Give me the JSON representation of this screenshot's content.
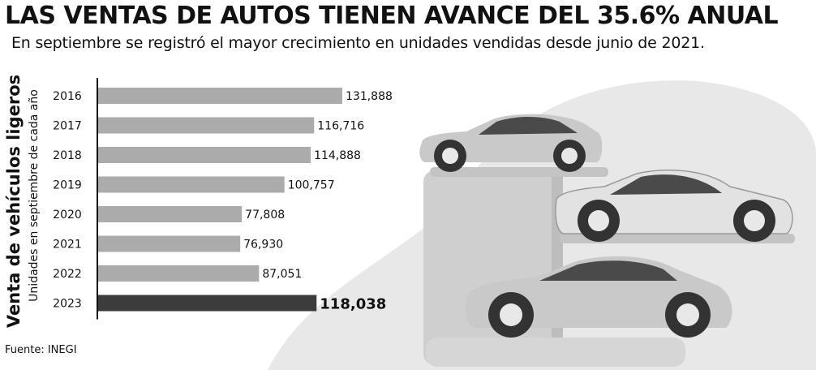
{
  "header": {
    "title": "LAS VENTAS DE AUTOS TIENEN AVANCE DEL 35.6% ANUAL",
    "subtitle": "En septiembre se registró el mayor crecimiento en unidades vendidas desde junio de 2021."
  },
  "footer": {
    "source": "Fuente: INEGI"
  },
  "colors": {
    "bar": "#ababab",
    "highlight": "#3c3c3c",
    "background_art": "#e6e6e6",
    "car": "#c8c8c8"
  },
  "chart_data": {
    "type": "bar",
    "orientation": "horizontal",
    "ylabel": "Venta de vehículos ligeros",
    "ylabel_sub": "Unidades en septiembre de cada año",
    "categories": [
      "2016",
      "2017",
      "2018",
      "2019",
      "2020",
      "2021",
      "2022",
      "2023"
    ],
    "values": [
      131888,
      116716,
      114888,
      100757,
      77808,
      76930,
      87051,
      118038
    ],
    "value_labels": [
      "131,888",
      "116,716",
      "114,888",
      "100,757",
      "77,808",
      "76,930",
      "87,051",
      "118,038"
    ],
    "highlight_category": "2023",
    "xlim": [
      0,
      131888
    ]
  }
}
